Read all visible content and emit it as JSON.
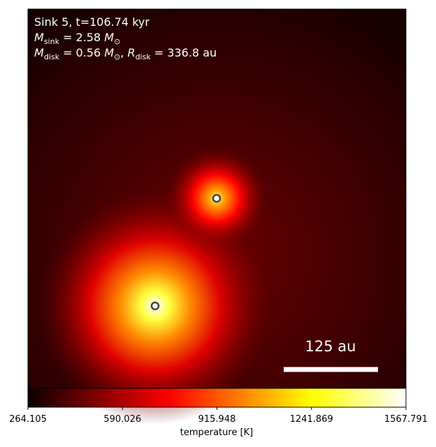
{
  "chart_data": {
    "type": "image",
    "info": [
      [
        {
          "t": "Sink 5, t=106.74 kyr"
        }
      ],
      [
        {
          "t": "M",
          "italic": true
        },
        {
          "t": "sink",
          "sub": true
        },
        {
          "t": " = 2.58 "
        },
        {
          "t": "M",
          "italic": true
        },
        {
          "t": "⊙",
          "sub": true
        }
      ],
      [
        {
          "t": "M",
          "italic": true
        },
        {
          "t": "disk",
          "sub": true
        },
        {
          "t": " = 0.56 "
        },
        {
          "t": "M",
          "italic": true
        },
        {
          "t": "⊙",
          "sub": true
        },
        {
          "t": ", "
        },
        {
          "t": "R",
          "italic": true
        },
        {
          "t": "disk",
          "sub": true
        },
        {
          "t": " = 336.8 au"
        }
      ]
    ],
    "scale_bar_label": "125 au",
    "colorbar": {
      "label": "temperature [K]",
      "colormap": "hot",
      "lim": [
        264.105,
        1567.791
      ],
      "ticks": [
        264.105,
        590.026,
        915.948,
        1241.869,
        1567.791
      ]
    }
  }
}
